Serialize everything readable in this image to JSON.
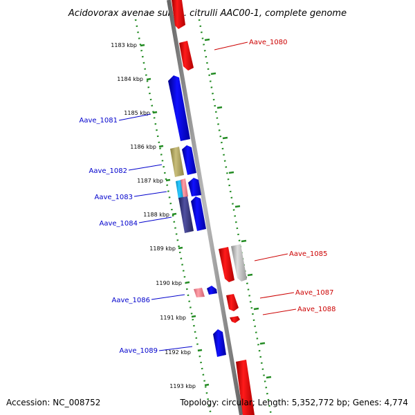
{
  "title": "Acidovorax avenae subsp. citrulli AAC00-1, complete genome",
  "footer": {
    "accession": "Accession: NC_008752",
    "summary": "Topology: circular; Length: 5,352,772 bp; Genes: 4,774"
  },
  "ticks": [
    "1183 kbp",
    "1184 kbp",
    "1185 kbp",
    "1186 kbp",
    "1187 kbp",
    "1188 kbp",
    "1189 kbp",
    "1190 kbp",
    "1191 kbp",
    "1192 kbp",
    "1193 kbp"
  ],
  "gene_labels": {
    "aave_1080": "Aave_1080",
    "aave_1081": "Aave_1081",
    "aave_1082": "Aave_1082",
    "aave_1083": "Aave_1083",
    "aave_1084": "Aave_1084",
    "aave_1085": "Aave_1085",
    "aave_1086": "Aave_1086",
    "aave_1087": "Aave_1087",
    "aave_1088": "Aave_1088",
    "aave_1089": "Aave_1089"
  },
  "colors": {
    "forward_label": "#cc0000",
    "reverse_label": "#0000cc",
    "tick_green": "#228b22",
    "backbone": "#888888"
  }
}
